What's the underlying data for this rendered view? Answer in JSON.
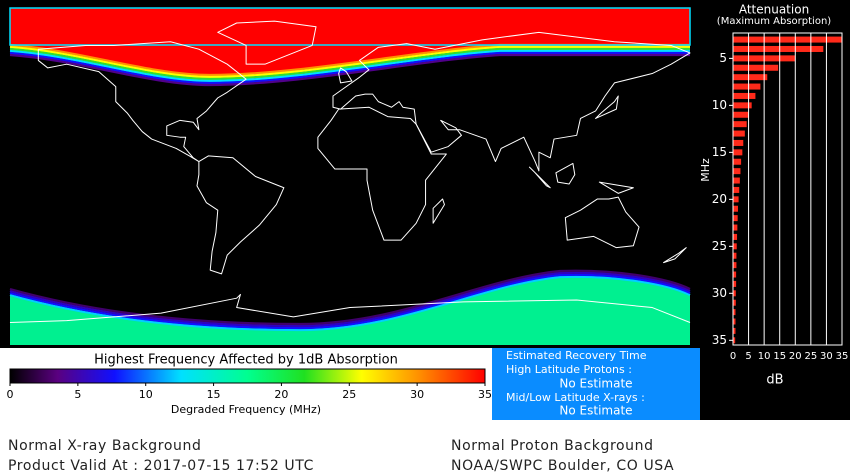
{
  "chart_data": {
    "type": "bar",
    "orientation": "horizontal",
    "title": "Attenuation",
    "subtitle": "(Maximum Absorption)",
    "y_label": "MHz",
    "x_label": "dB",
    "categories": [
      3,
      4,
      5,
      6,
      7,
      8,
      9,
      10,
      11,
      12,
      13,
      14,
      15,
      16,
      17,
      18,
      19,
      20,
      21,
      22,
      23,
      24,
      25,
      26,
      27,
      28,
      29,
      30,
      31,
      32,
      33,
      34,
      35
    ],
    "values": [
      35,
      29,
      20,
      14.5,
      11,
      8.8,
      7.2,
      6,
      5.1,
      4.4,
      3.8,
      3.3,
      3,
      2.6,
      2.4,
      2.2,
      2,
      1.8,
      1.6,
      1.5,
      1.4,
      1.3,
      1.2,
      1.1,
      1.1,
      1,
      1,
      0.9,
      0.9,
      0.8,
      0.8,
      0.8,
      0.7
    ],
    "color": "#ff2a1a",
    "xlim": [
      0,
      35
    ],
    "xticks": [
      0,
      5,
      10,
      15,
      20,
      25,
      30,
      35
    ],
    "ylim": [
      2.3,
      35.5
    ],
    "yticks": [
      5,
      10,
      15,
      20,
      25,
      30,
      35
    ],
    "grid": true
  },
  "colorbar": {
    "title": "Highest Frequency Affected by 1dB Absorption",
    "label": "Degraded Frequency (MHz)",
    "xlim": [
      0,
      35
    ],
    "ticks": [
      0,
      5,
      10,
      15,
      20,
      25,
      30,
      35
    ]
  },
  "recovery": {
    "title": "Estimated Recovery Time",
    "high_latitude_label": "High Latitude Protons :",
    "high_latitude_value": "No Estimate",
    "mid_low_label": "Mid/Low Latitude X-rays :",
    "mid_low_value": "No Estimate"
  },
  "footer": {
    "xray": "Normal X-ray Background",
    "valid": "Product Valid At : 2017-07-15 17:52 UTC",
    "proton": "Normal Proton Background",
    "source": "NOAA/SWPC Boulder, CO USA"
  }
}
